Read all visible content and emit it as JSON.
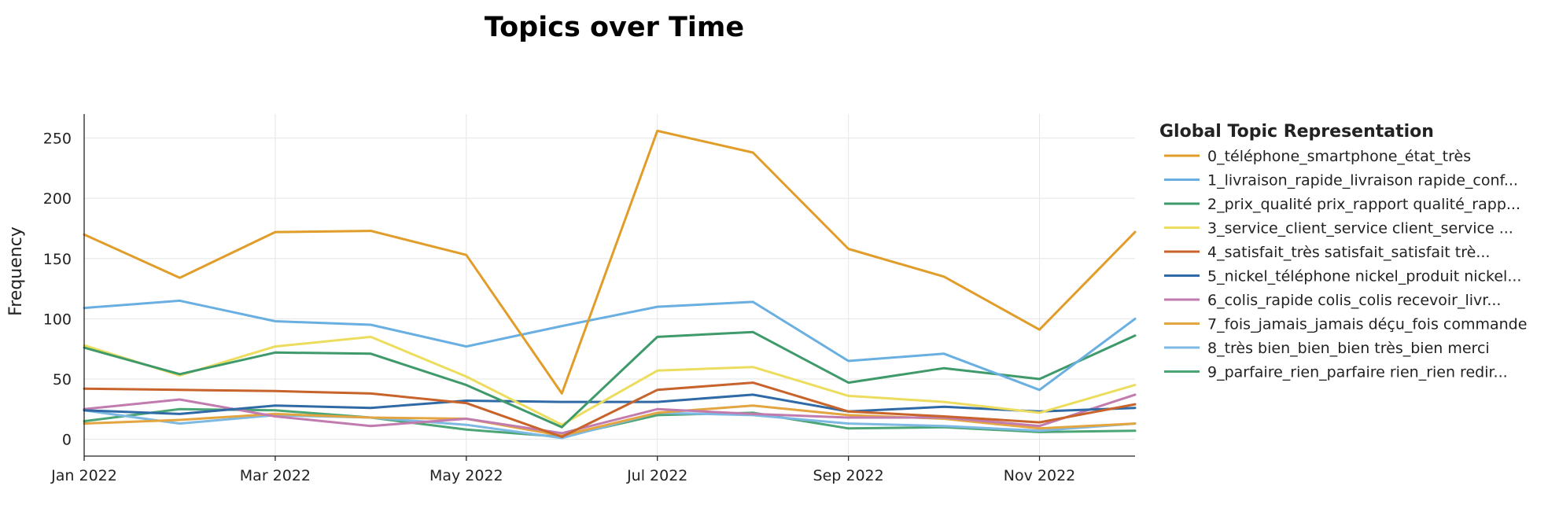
{
  "chart_data": {
    "type": "line",
    "title": "Topics over Time",
    "xlabel": "",
    "ylabel": "Frequency",
    "x": [
      "2022-01",
      "2022-02",
      "2022-03",
      "2022-04",
      "2022-05",
      "2022-06",
      "2022-07",
      "2022-08",
      "2022-09",
      "2022-10",
      "2022-11",
      "2022-12"
    ],
    "x_ticks": [
      {
        "x": "2022-01",
        "label": "Jan 2022"
      },
      {
        "x": "2022-03",
        "label": "Mar 2022"
      },
      {
        "x": "2022-05",
        "label": "May 2022"
      },
      {
        "x": "2022-07",
        "label": "Jul 2022"
      },
      {
        "x": "2022-09",
        "label": "Sep 2022"
      },
      {
        "x": "2022-11",
        "label": "Nov 2022"
      }
    ],
    "yticks": [
      0,
      50,
      100,
      150,
      200,
      250
    ],
    "ylim": [
      -14,
      270
    ],
    "grid": true,
    "legend": {
      "title": "Global Topic Representation",
      "placement": "right"
    },
    "series": [
      {
        "name": "0_téléphone_smartphone_état_très",
        "color": "#E19D29",
        "values": [
          170,
          134,
          172,
          173,
          153,
          38,
          256,
          238,
          158,
          135,
          91,
          172
        ]
      },
      {
        "name": "1_livraison_rapide_livraison rapide_conf...",
        "color": "#6AAFE1",
        "values": [
          109,
          115,
          98,
          95,
          77,
          94,
          110,
          114,
          65,
          71,
          41,
          100
        ]
      },
      {
        "name": "2_prix_qualité prix_rapport qualité_rapp...",
        "color": "#3F9A6B",
        "values": [
          76,
          54,
          72,
          71,
          45,
          10,
          85,
          89,
          47,
          59,
          50,
          86
        ]
      },
      {
        "name": "3_service_client_service client_service ...",
        "color": "#ECDD5F",
        "values": [
          78,
          53,
          77,
          85,
          52,
          12,
          57,
          60,
          36,
          31,
          22,
          45
        ]
      },
      {
        "name": "4_satisfait_très satisfait_satisfait trè...",
        "color": "#C7632B",
        "values": [
          42,
          41,
          40,
          38,
          30,
          2,
          41,
          47,
          23,
          19,
          14,
          29
        ]
      },
      {
        "name": "5_nickel_téléphone nickel_produit nickel...",
        "color": "#2F6AA6",
        "values": [
          24,
          21,
          28,
          26,
          32,
          31,
          31,
          37,
          23,
          27,
          23,
          26
        ]
      },
      {
        "name": "6_colis_rapide colis_colis recevoir_livr...",
        "color": "#C27BAE",
        "values": [
          25,
          33,
          19,
          11,
          17,
          5,
          25,
          21,
          18,
          18,
          11,
          37
        ]
      },
      {
        "name": "7_fois_jamais_jamais déçu_fois commande",
        "color": "#E3A540",
        "values": [
          13,
          16,
          21,
          18,
          17,
          3,
          22,
          28,
          20,
          17,
          9,
          13
        ]
      },
      {
        "name": "8_très bien_bien_bien très_bien merci",
        "color": "#7DB9E3",
        "values": [
          24,
          13,
          20,
          18,
          12,
          1,
          22,
          20,
          13,
          11,
          7,
          13
        ]
      },
      {
        "name": "9_parfaire_rien_parfaire rien_rien redir...",
        "color": "#4CA574",
        "values": [
          15,
          25,
          24,
          18,
          8,
          2,
          20,
          22,
          9,
          10,
          6,
          7
        ]
      }
    ]
  }
}
